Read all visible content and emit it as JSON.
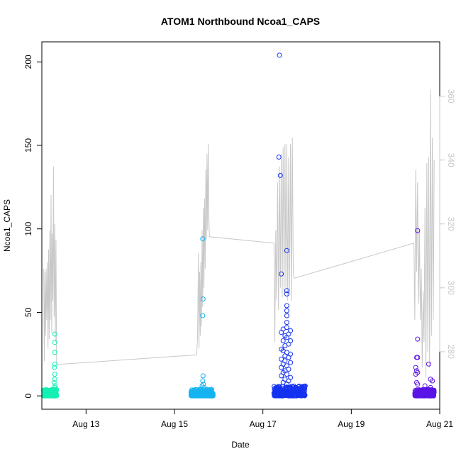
{
  "chart_data": {
    "type": "scatter",
    "title": "ATOM1 Northbound Ncoa1_CAPS",
    "xlabel": "Date",
    "ylabel": "Ncoa1_CAPS",
    "x_axis": {
      "type": "date",
      "range": [
        "2024-08-12T00:00",
        "2024-08-21T00:00"
      ],
      "ticks": [
        {
          "value": "2024-08-13T00:00",
          "label": "Aug 13"
        },
        {
          "value": "2024-08-15T00:00",
          "label": "Aug 15"
        },
        {
          "value": "2024-08-17T00:00",
          "label": "Aug 17"
        },
        {
          "value": "2024-08-19T00:00",
          "label": "Aug 19"
        },
        {
          "value": "2024-08-21T00:00",
          "label": "Aug 21"
        }
      ]
    },
    "y_axis": {
      "range": [
        -8,
        212
      ],
      "ticks": [
        0,
        50,
        100,
        150,
        200
      ]
    },
    "y2_axis": {
      "range": [
        262,
        377
      ],
      "ticks": [
        280,
        300,
        320,
        340,
        360
      ],
      "color": "#c8c8c8"
    },
    "marker": "open-circle",
    "grid": false,
    "point_groups": [
      {
        "color": "#14f0b4",
        "points": [
          [
            "2024-08-12T07:00",
            37
          ],
          [
            "2024-08-12T07:00",
            32
          ],
          [
            "2024-08-12T07:00",
            26
          ],
          [
            "2024-08-12T07:00",
            19
          ],
          [
            "2024-08-12T06:50",
            17
          ],
          [
            "2024-08-12T07:00",
            13
          ],
          [
            "2024-08-12T07:00",
            10
          ],
          [
            "2024-08-12T06:40",
            8
          ],
          [
            "2024-08-12T07:10",
            6
          ],
          [
            "2024-08-12T07:00",
            5
          ]
        ],
        "base_band": {
          "x": [
            "2024-08-12T01:00",
            "2024-08-12T08:00"
          ],
          "y": [
            0,
            4
          ]
        }
      },
      {
        "color": "#14b4f0",
        "points": [
          [
            "2024-08-15T15:20",
            94
          ],
          [
            "2024-08-15T15:30",
            58
          ],
          [
            "2024-08-15T15:20",
            48
          ],
          [
            "2024-08-15T15:30",
            12
          ],
          [
            "2024-08-15T15:20",
            9
          ],
          [
            "2024-08-15T15:40",
            7
          ],
          [
            "2024-08-15T15:00",
            6
          ],
          [
            "2024-08-15T16:00",
            5
          ]
        ],
        "base_band": {
          "x": [
            "2024-08-15T09:00",
            "2024-08-15T21:00"
          ],
          "y": [
            0,
            4
          ]
        }
      },
      {
        "color": "#1432f0",
        "points": [
          [
            "2024-08-17T09:00",
            204
          ],
          [
            "2024-08-17T08:40",
            143
          ],
          [
            "2024-08-17T09:30",
            132
          ],
          [
            "2024-08-17T13:00",
            87
          ],
          [
            "2024-08-17T10:00",
            73
          ],
          [
            "2024-08-17T13:00",
            63
          ],
          [
            "2024-08-17T13:00",
            61
          ],
          [
            "2024-08-17T13:00",
            54
          ],
          [
            "2024-08-17T13:00",
            51
          ],
          [
            "2024-08-17T13:00",
            48
          ],
          [
            "2024-08-17T13:00",
            44
          ],
          [
            "2024-08-17T13:00",
            41
          ],
          [
            "2024-08-17T11:00",
            40
          ],
          [
            "2024-08-17T15:00",
            39
          ],
          [
            "2024-08-17T10:00",
            38
          ],
          [
            "2024-08-17T14:00",
            37
          ],
          [
            "2024-08-17T12:00",
            36
          ],
          [
            "2024-08-17T13:00",
            35
          ],
          [
            "2024-08-17T11:00",
            33
          ],
          [
            "2024-08-17T15:00",
            33
          ],
          [
            "2024-08-17T14:00",
            31
          ],
          [
            "2024-08-17T12:00",
            30
          ],
          [
            "2024-08-17T10:00",
            28
          ],
          [
            "2024-08-17T11:00",
            27
          ],
          [
            "2024-08-17T13:00",
            26
          ],
          [
            "2024-08-17T15:00",
            25
          ],
          [
            "2024-08-17T12:00",
            24
          ],
          [
            "2024-08-17T14:00",
            23
          ],
          [
            "2024-08-17T10:00",
            22
          ],
          [
            "2024-08-17T12:00",
            21
          ],
          [
            "2024-08-17T15:00",
            20
          ],
          [
            "2024-08-17T11:00",
            19
          ],
          [
            "2024-08-17T13:00",
            18
          ],
          [
            "2024-08-17T10:00",
            17
          ],
          [
            "2024-08-17T14:00",
            16
          ],
          [
            "2024-08-17T12:00",
            15
          ],
          [
            "2024-08-17T11:00",
            14
          ],
          [
            "2024-08-17T13:00",
            13
          ],
          [
            "2024-08-17T10:00",
            12
          ],
          [
            "2024-08-17T15:00",
            11
          ],
          [
            "2024-08-17T12:00",
            10
          ],
          [
            "2024-08-17T14:00",
            9
          ],
          [
            "2024-08-17T11:00",
            8
          ],
          [
            "2024-08-17T13:00",
            7
          ]
        ],
        "base_band": {
          "x": [
            "2024-08-17T06:00",
            "2024-08-17T23:00"
          ],
          "y": [
            0,
            6
          ]
        }
      },
      {
        "color": "#5a14e6",
        "points": [
          [
            "2024-08-20T12:00",
            99
          ],
          [
            "2024-08-20T12:00",
            34
          ],
          [
            "2024-08-20T11:30",
            23
          ],
          [
            "2024-08-20T12:00",
            23
          ],
          [
            "2024-08-20T18:00",
            19
          ],
          [
            "2024-08-20T11:00",
            17
          ],
          [
            "2024-08-20T11:30",
            15
          ],
          [
            "2024-08-20T12:00",
            14
          ],
          [
            "2024-08-20T11:00",
            13
          ],
          [
            "2024-08-20T19:00",
            10
          ],
          [
            "2024-08-20T20:00",
            9
          ],
          [
            "2024-08-20T11:30",
            8
          ],
          [
            "2024-08-20T12:00",
            7
          ],
          [
            "2024-08-20T16:00",
            6
          ],
          [
            "2024-08-20T19:00",
            5
          ]
        ],
        "base_band": {
          "x": [
            "2024-08-20T10:30",
            "2024-08-20T21:00"
          ],
          "y": [
            0,
            4
          ]
        }
      }
    ],
    "secondary_line": {
      "color": "#c8c8c8",
      "axis": "y2",
      "points": [
        [
          "2024-08-12T01:00",
          306
        ],
        [
          "2024-08-12T01:20",
          277
        ],
        [
          "2024-08-12T01:40",
          305
        ],
        [
          "2024-08-12T02:00",
          285
        ],
        [
          "2024-08-12T02:20",
          306
        ],
        [
          "2024-08-12T02:40",
          290
        ],
        [
          "2024-08-12T03:00",
          308
        ],
        [
          "2024-08-12T03:20",
          281
        ],
        [
          "2024-08-12T03:40",
          312
        ],
        [
          "2024-08-12T04:00",
          284
        ],
        [
          "2024-08-12T04:20",
          318
        ],
        [
          "2024-08-12T04:40",
          290
        ],
        [
          "2024-08-12T05:00",
          329
        ],
        [
          "2024-08-12T05:20",
          286
        ],
        [
          "2024-08-12T05:40",
          317
        ],
        [
          "2024-08-12T06:00",
          296
        ],
        [
          "2024-08-12T06:20",
          338
        ],
        [
          "2024-08-12T06:40",
          291
        ],
        [
          "2024-08-12T07:00",
          320
        ],
        [
          "2024-08-12T07:20",
          283
        ],
        [
          "2024-08-12T07:40",
          315
        ],
        [
          "2024-08-12T08:00",
          277
        ],
        [
          "2024-08-12T08:30",
          276
        ],
        [
          "2024-08-15T12:00",
          279
        ],
        [
          "2024-08-15T12:30",
          284
        ],
        [
          "2024-08-15T13:00",
          311
        ],
        [
          "2024-08-15T13:20",
          281
        ],
        [
          "2024-08-15T13:40",
          305
        ],
        [
          "2024-08-15T14:00",
          285
        ],
        [
          "2024-08-15T14:20",
          308
        ],
        [
          "2024-08-15T14:40",
          288
        ],
        [
          "2024-08-15T15:00",
          318
        ],
        [
          "2024-08-15T15:20",
          294
        ],
        [
          "2024-08-15T15:40",
          325
        ],
        [
          "2024-08-15T16:00",
          300
        ],
        [
          "2024-08-15T16:20",
          328
        ],
        [
          "2024-08-15T16:40",
          306
        ],
        [
          "2024-08-15T17:00",
          337
        ],
        [
          "2024-08-15T17:20",
          315
        ],
        [
          "2024-08-15T17:40",
          342
        ],
        [
          "2024-08-15T18:00",
          318
        ],
        [
          "2024-08-15T18:20",
          345
        ],
        [
          "2024-08-15T18:40",
          322
        ],
        [
          "2024-08-15T19:00",
          316
        ],
        [
          "2024-08-17T06:00",
          314
        ],
        [
          "2024-08-17T06:30",
          283
        ],
        [
          "2024-08-17T07:00",
          318
        ],
        [
          "2024-08-17T07:30",
          296
        ],
        [
          "2024-08-17T08:00",
          333
        ],
        [
          "2024-08-17T08:30",
          293
        ],
        [
          "2024-08-17T09:00",
          338
        ],
        [
          "2024-08-17T09:30",
          300
        ],
        [
          "2024-08-17T10:00",
          342
        ],
        [
          "2024-08-17T10:30",
          297
        ],
        [
          "2024-08-17T11:00",
          344
        ],
        [
          "2024-08-17T11:30",
          298
        ],
        [
          "2024-08-17T12:00",
          345
        ],
        [
          "2024-08-17T12:30",
          300
        ],
        [
          "2024-08-17T13:00",
          345
        ],
        [
          "2024-08-17T13:30",
          296
        ],
        [
          "2024-08-17T14:00",
          341
        ],
        [
          "2024-08-17T14:30",
          298
        ],
        [
          "2024-08-17T15:00",
          345
        ],
        [
          "2024-08-17T15:30",
          296
        ],
        [
          "2024-08-17T16:00",
          347
        ],
        [
          "2024-08-17T16:30",
          305
        ],
        [
          "2024-08-17T17:00",
          303
        ],
        [
          "2024-08-20T10:00",
          314
        ],
        [
          "2024-08-20T10:30",
          290
        ],
        [
          "2024-08-20T11:00",
          337
        ],
        [
          "2024-08-20T11:30",
          305
        ],
        [
          "2024-08-20T12:00",
          333
        ],
        [
          "2024-08-20T12:30",
          295
        ],
        [
          "2024-08-20T13:00",
          318
        ],
        [
          "2024-08-20T13:30",
          290
        ],
        [
          "2024-08-20T14:00",
          306
        ],
        [
          "2024-08-20T14:30",
          275
        ],
        [
          "2024-08-20T15:00",
          299
        ],
        [
          "2024-08-20T15:30",
          283
        ],
        [
          "2024-08-20T16:00",
          325
        ],
        [
          "2024-08-20T16:30",
          272
        ],
        [
          "2024-08-20T17:00",
          339
        ],
        [
          "2024-08-20T17:30",
          280
        ],
        [
          "2024-08-20T18:00",
          341
        ],
        [
          "2024-08-20T18:30",
          275
        ],
        [
          "2024-08-20T19:00",
          362
        ],
        [
          "2024-08-20T19:30",
          285
        ],
        [
          "2024-08-20T20:00",
          347
        ],
        [
          "2024-08-20T20:30",
          290
        ],
        [
          "2024-08-20T21:00",
          340
        ]
      ]
    }
  }
}
